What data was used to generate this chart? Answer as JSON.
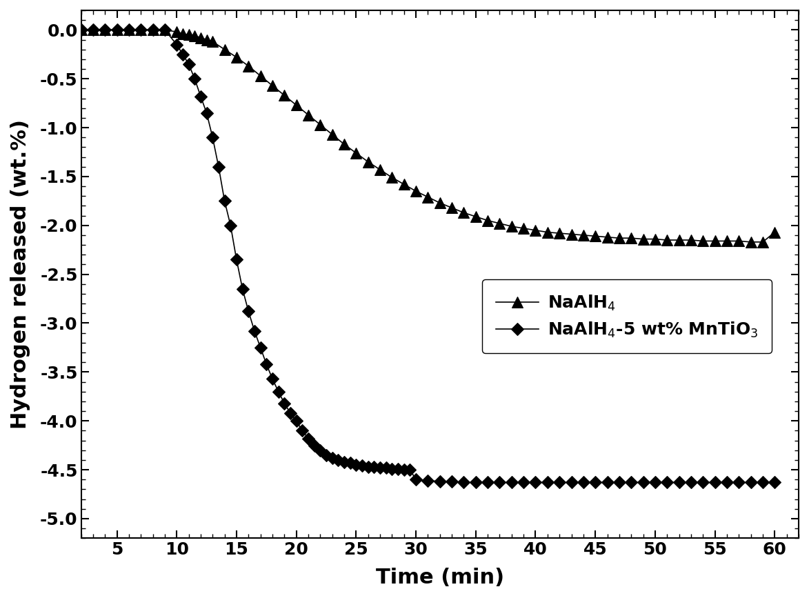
{
  "title": "",
  "xlabel": "Time (min)",
  "ylabel": "Hydrogen released (wt.%)",
  "xlim": [
    2,
    62
  ],
  "ylim": [
    -5.2,
    0.2
  ],
  "xticks": [
    5,
    10,
    15,
    20,
    25,
    30,
    35,
    40,
    45,
    50,
    55,
    60
  ],
  "yticks": [
    0.0,
    -0.5,
    -1.0,
    -1.5,
    -2.0,
    -2.5,
    -3.0,
    -3.5,
    -4.0,
    -4.5,
    -5.0
  ],
  "legend_label_1": "NaAlH$_4$",
  "legend_label_2": "NaAlH$_4$-5 wt% MnTiO$_3$",
  "line_color": "#000000",
  "marker_color": "#000000",
  "background_color": "#ffffff",
  "series1_x": [
    2,
    3,
    4,
    5,
    6,
    7,
    8,
    9,
    10,
    10.5,
    11,
    11.5,
    12,
    12.5,
    13,
    14,
    15,
    16,
    17,
    18,
    19,
    20,
    21,
    22,
    23,
    24,
    25,
    26,
    27,
    28,
    29,
    30,
    31,
    32,
    33,
    34,
    35,
    36,
    37,
    38,
    39,
    40,
    41,
    42,
    43,
    44,
    45,
    46,
    47,
    48,
    49,
    50,
    51,
    52,
    53,
    54,
    55,
    56,
    57,
    58,
    59,
    60
  ],
  "series1_y": [
    0.0,
    0.0,
    0.0,
    0.0,
    0.0,
    0.0,
    0.0,
    0.0,
    -0.02,
    -0.04,
    -0.05,
    -0.06,
    -0.08,
    -0.1,
    -0.12,
    -0.2,
    -0.28,
    -0.37,
    -0.47,
    -0.57,
    -0.67,
    -0.77,
    -0.87,
    -0.97,
    -1.07,
    -1.17,
    -1.26,
    -1.35,
    -1.43,
    -1.51,
    -1.58,
    -1.65,
    -1.71,
    -1.77,
    -1.82,
    -1.87,
    -1.91,
    -1.95,
    -1.98,
    -2.01,
    -2.03,
    -2.05,
    -2.07,
    -2.08,
    -2.09,
    -2.1,
    -2.11,
    -2.12,
    -2.13,
    -2.13,
    -2.14,
    -2.14,
    -2.15,
    -2.15,
    -2.15,
    -2.16,
    -2.16,
    -2.16,
    -2.16,
    -2.17,
    -2.17,
    -2.07
  ],
  "series2_x": [
    2,
    3,
    4,
    5,
    6,
    7,
    8,
    9,
    10,
    10.5,
    11,
    11.5,
    12,
    12.5,
    13,
    13.5,
    14,
    14.5,
    15,
    15.5,
    16,
    16.5,
    17,
    17.5,
    18,
    18.5,
    19,
    19.5,
    20,
    20.5,
    21,
    21.5,
    22,
    22.5,
    23,
    23.5,
    24,
    24.5,
    25,
    25.5,
    26,
    26.5,
    27,
    27.5,
    28,
    28.5,
    29,
    29.5,
    30,
    31,
    32,
    33,
    34,
    35,
    36,
    37,
    38,
    39,
    40,
    41,
    42,
    43,
    44,
    45,
    46,
    47,
    48,
    49,
    50,
    51,
    52,
    53,
    54,
    55,
    56,
    57,
    58,
    59,
    60
  ],
  "series2_y": [
    0.0,
    0.0,
    0.0,
    0.0,
    0.0,
    0.0,
    0.0,
    0.0,
    -0.15,
    -0.25,
    -0.35,
    -0.5,
    -0.68,
    -0.85,
    -1.1,
    -1.4,
    -1.75,
    -2.0,
    -2.35,
    -2.65,
    -2.88,
    -3.08,
    -3.25,
    -3.42,
    -3.57,
    -3.7,
    -3.82,
    -3.92,
    -4.0,
    -4.1,
    -4.18,
    -4.25,
    -4.3,
    -4.35,
    -4.38,
    -4.4,
    -4.42,
    -4.43,
    -4.45,
    -4.46,
    -4.47,
    -4.47,
    -4.48,
    -4.48,
    -4.49,
    -4.49,
    -4.5,
    -4.5,
    -4.6,
    -4.61,
    -4.62,
    -4.62,
    -4.63,
    -4.63,
    -4.63,
    -4.63,
    -4.63,
    -4.63,
    -4.63,
    -4.63,
    -4.63,
    -4.63,
    -4.63,
    -4.63,
    -4.63,
    -4.63,
    -4.63,
    -4.63,
    -4.63,
    -4.63,
    -4.63,
    -4.63,
    -4.63,
    -4.63,
    -4.63,
    -4.63,
    -4.63,
    -4.63,
    -4.63
  ]
}
